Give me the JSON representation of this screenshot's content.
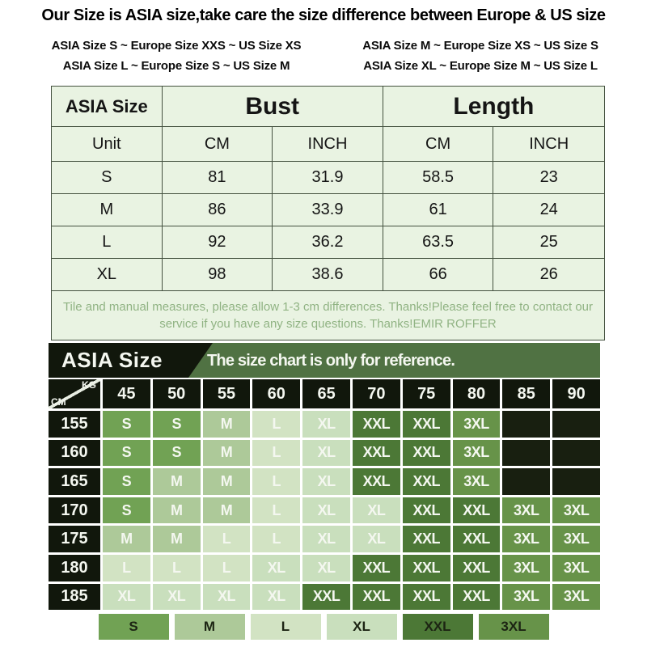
{
  "title": "Our Size is ASIA size,take care the size difference between Europe & US size",
  "conversions": [
    [
      "ASIA Size S  ~  Europe Size XXS  ~  US Size XS",
      "ASIA Size M  ~  Europe Size XS  ~  US Size S"
    ],
    [
      "ASIA Size L ~  Europe Size S  ~  US Size M",
      "ASIA Size XL ~  Europe Size M  ~  US Size L"
    ]
  ],
  "size_table": {
    "header": {
      "col1": "ASIA Size",
      "bust": "Bust",
      "length": "Length"
    },
    "subheader": [
      "Unit",
      "CM",
      "INCH",
      "CM",
      "INCH"
    ],
    "rows": [
      [
        "S",
        "81",
        "31.9",
        "58.5",
        "23"
      ],
      [
        "M",
        "86",
        "33.9",
        "61",
        "24"
      ],
      [
        "L",
        "92",
        "36.2",
        "63.5",
        "25"
      ],
      [
        "XL",
        "98",
        "38.6",
        "66",
        "26"
      ]
    ],
    "note_line1": "Tile and manual measures, please allow 1-3 cm differences. Thanks!Please feel free to contact our",
    "note_line2": "service if you have any size questions. Thanks!EMIR ROFFER"
  },
  "reference_chart": {
    "title": "ASIA Size",
    "subtitle": "The size chart is only for reference.",
    "col_axis": "KG",
    "row_axis": "CM",
    "columns": [
      "45",
      "50",
      "55",
      "60",
      "65",
      "70",
      "75",
      "80",
      "85",
      "90"
    ],
    "rows": [
      {
        "label": "155",
        "cells": [
          "S",
          "S",
          "M",
          "L",
          "XL",
          "XXL",
          "XXL",
          "3XL",
          "",
          ""
        ]
      },
      {
        "label": "160",
        "cells": [
          "S",
          "S",
          "M",
          "L",
          "XL",
          "XXL",
          "XXL",
          "3XL",
          "",
          ""
        ]
      },
      {
        "label": "165",
        "cells": [
          "S",
          "M",
          "M",
          "L",
          "XL",
          "XXL",
          "XXL",
          "3XL",
          "",
          ""
        ]
      },
      {
        "label": "170",
        "cells": [
          "S",
          "M",
          "M",
          "L",
          "XL",
          "XL",
          "XXL",
          "XXL",
          "3XL",
          "3XL"
        ]
      },
      {
        "label": "175",
        "cells": [
          "M",
          "M",
          "L",
          "L",
          "XL",
          "XL",
          "XXL",
          "XXL",
          "3XL",
          "3XL"
        ]
      },
      {
        "label": "180",
        "cells": [
          "L",
          "L",
          "L",
          "XL",
          "XL",
          "XXL",
          "XXL",
          "XXL",
          "3XL",
          "3XL"
        ]
      },
      {
        "label": "185",
        "cells": [
          "XL",
          "XL",
          "XL",
          "XL",
          "XXL",
          "XXL",
          "XXL",
          "XXL",
          "3XL",
          "3XL"
        ]
      }
    ]
  },
  "legend": [
    "S",
    "M",
    "L",
    "XL",
    "XXL",
    "3XL"
  ],
  "colors": {
    "sizes": {
      "S": "#71a254",
      "M": "#adc999",
      "L": "#d2e3c3",
      "XL": "#c9dfbd",
      "XXL": "#4c7836",
      "3XL": "#679349"
    },
    "empty_cell": "#181f10",
    "chart_black": "#11170c",
    "chart_header_green": "#507243",
    "table_bg": "#e9f3e2",
    "table_border": "#44513f",
    "note_text": "#90b383",
    "cell_text": "#f4f7f0",
    "legend_text": "#1c2413"
  },
  "chart_data": [
    {
      "type": "table",
      "title": "ASIA Size — Bust / Length",
      "columns": [
        "ASIA Size",
        "Bust CM",
        "Bust INCH",
        "Length CM",
        "Length INCH"
      ],
      "rows": [
        [
          "S",
          81,
          31.9,
          58.5,
          23
        ],
        [
          "M",
          86,
          33.9,
          61,
          24
        ],
        [
          "L",
          92,
          36.2,
          63.5,
          25
        ],
        [
          "XL",
          98,
          38.6,
          66,
          26
        ]
      ]
    },
    {
      "type": "heatmap",
      "title": "ASIA Size — The size chart is only for reference.",
      "xlabel": "KG (weight)",
      "ylabel": "CM (height)",
      "x": [
        45,
        50,
        55,
        60,
        65,
        70,
        75,
        80,
        85,
        90
      ],
      "y": [
        155,
        160,
        165,
        170,
        175,
        180,
        185
      ],
      "values": [
        [
          "S",
          "S",
          "M",
          "L",
          "XL",
          "XXL",
          "XXL",
          "3XL",
          null,
          null
        ],
        [
          "S",
          "S",
          "M",
          "L",
          "XL",
          "XXL",
          "XXL",
          "3XL",
          null,
          null
        ],
        [
          "S",
          "M",
          "M",
          "L",
          "XL",
          "XXL",
          "XXL",
          "3XL",
          null,
          null
        ],
        [
          "S",
          "M",
          "M",
          "L",
          "XL",
          "XL",
          "XXL",
          "XXL",
          "3XL",
          "3XL"
        ],
        [
          "M",
          "M",
          "L",
          "L",
          "XL",
          "XL",
          "XXL",
          "XXL",
          "3XL",
          "3XL"
        ],
        [
          "L",
          "L",
          "L",
          "XL",
          "XL",
          "XXL",
          "XXL",
          "XXL",
          "3XL",
          "3XL"
        ],
        [
          "XL",
          "XL",
          "XL",
          "XL",
          "XXL",
          "XXL",
          "XXL",
          "XXL",
          "3XL",
          "3XL"
        ]
      ],
      "legend_entries": [
        "S",
        "M",
        "L",
        "XL",
        "XXL",
        "3XL"
      ],
      "legend_position": "bottom"
    }
  ]
}
